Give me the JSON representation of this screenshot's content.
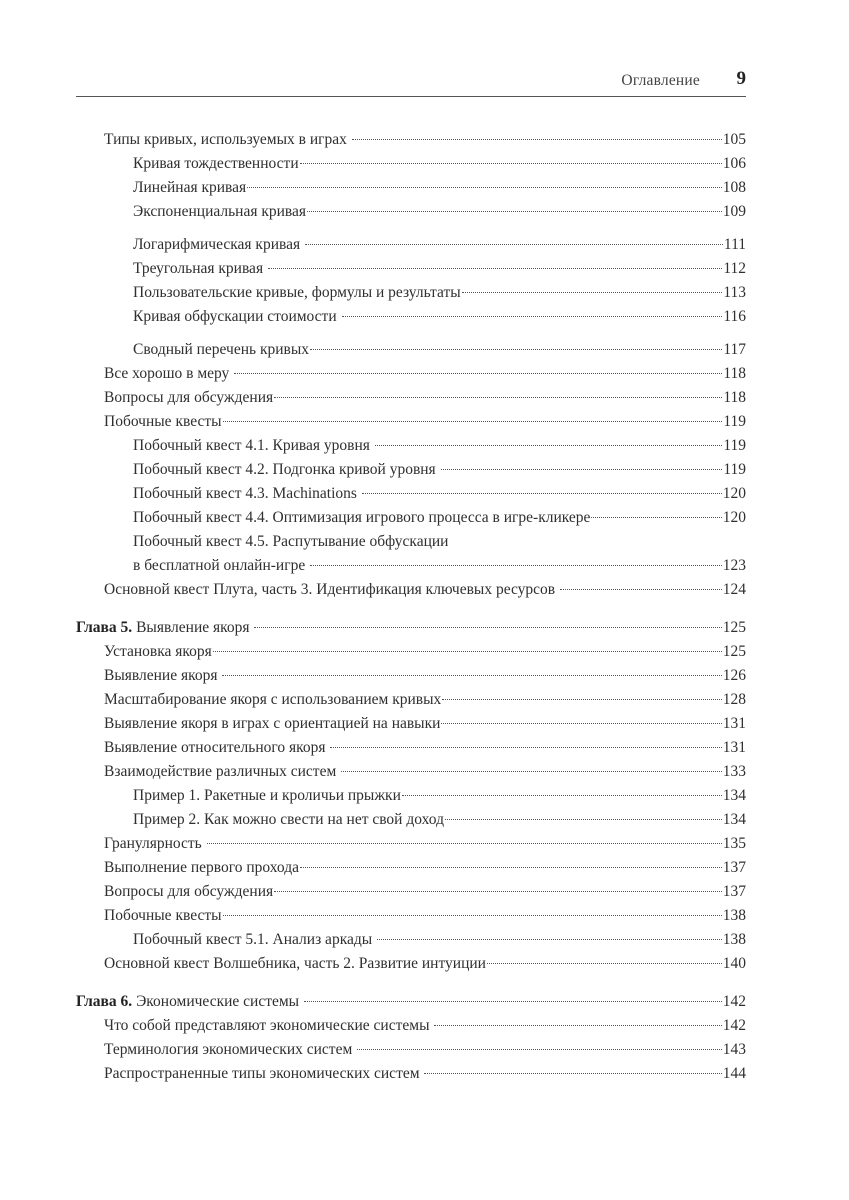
{
  "header": {
    "title": "Оглавление",
    "page_number": "9"
  },
  "toc": [
    [
      {
        "level": 1,
        "text": "Типы кривых, используемых в играх ",
        "page": "105"
      },
      {
        "level": 2,
        "text": "Кривая тождественности",
        "page": "106"
      },
      {
        "level": 2,
        "text": "Линейная кривая",
        "page": "108"
      },
      {
        "level": 2,
        "text": "Экспоненциальная кривая",
        "page": "109"
      }
    ],
    [
      {
        "level": 2,
        "text": "Логарифмическая кривая ",
        "page": "111"
      },
      {
        "level": 2,
        "text": "Треугольная кривая ",
        "page": "112"
      },
      {
        "level": 2,
        "text": "Пользовательские кривые, формулы и результаты",
        "page": "113"
      },
      {
        "level": 2,
        "text": "Кривая обфускации стоимости ",
        "page": "116"
      }
    ],
    [
      {
        "level": 2,
        "text": "Сводный перечень кривых",
        "page": "117"
      },
      {
        "level": 1,
        "text": "Все хорошо в меру ",
        "page": "118"
      },
      {
        "level": 1,
        "text": "Вопросы для обсуждения",
        "page": "118"
      },
      {
        "level": 1,
        "text": "Побочные квесты",
        "page": "119"
      },
      {
        "level": 2,
        "text": "Побочный квест 4.1. Кривая уровня ",
        "page": "119"
      },
      {
        "level": 2,
        "text": "Побочный квест 4.2. Подгонка кривой уровня ",
        "page": "119"
      },
      {
        "level": 2,
        "text": "Побочный квест 4.3. Machinations ",
        "page": "120"
      },
      {
        "level": 2,
        "text": "Побочный квест 4.4. Оптимизация игрового процесса в игре-кликере",
        "page": "120"
      },
      {
        "level": 2,
        "text_first": "Побочный квест 4.5. Распутывание обфускации",
        "text": "в бесплатной онлайн-игре ",
        "page": "123"
      },
      {
        "level": 1,
        "text": "Основной квест Плута, часть 3. Идентификация ключевых ресурсов ",
        "page": "124"
      }
    ],
    [
      {
        "level": 0,
        "chapter": "Глава 5.",
        "text": " Выявление якоря ",
        "page": "125"
      },
      {
        "level": 1,
        "text": "Установка якоря",
        "page": "125"
      },
      {
        "level": 1,
        "text": "Выявление якоря ",
        "page": "126"
      },
      {
        "level": 1,
        "text": "Масштабирование якоря с использованием кривых",
        "page": "128"
      },
      {
        "level": 1,
        "text": "Выявление якоря в играх с ориентацией на навыки",
        "page": "131"
      },
      {
        "level": 1,
        "text": "Выявление относительного якоря ",
        "page": "131"
      },
      {
        "level": 1,
        "text": "Взаимодействие различных систем ",
        "page": "133"
      },
      {
        "level": 2,
        "text": "Пример 1. Ракетные и кроличьи прыжки",
        "page": "134"
      },
      {
        "level": 2,
        "text": "Пример 2. Как можно свести на нет свой доход",
        "page": "134"
      },
      {
        "level": 1,
        "text": "Гранулярность ",
        "page": "135"
      },
      {
        "level": 1,
        "text": "Выполнение первого прохода",
        "page": "137"
      },
      {
        "level": 1,
        "text": "Вопросы для обсуждения",
        "page": "137"
      },
      {
        "level": 1,
        "text": "Побочные квесты",
        "page": "138"
      },
      {
        "level": 2,
        "text": "Побочный квест 5.1. Анализ аркады ",
        "page": "138"
      },
      {
        "level": 1,
        "text": "Основной квест Волшебника, часть 2. Развитие интуиции",
        "page": "140"
      }
    ],
    [
      {
        "level": 0,
        "chapter": "Глава 6.",
        "text": " Экономические системы ",
        "page": "142"
      },
      {
        "level": 1,
        "text": "Что собой представляют экономические системы ",
        "page": "142"
      },
      {
        "level": 1,
        "text": "Терминология экономических систем ",
        "page": "143"
      },
      {
        "level": 1,
        "text": "Распространенные типы экономических систем ",
        "page": "144"
      }
    ]
  ]
}
